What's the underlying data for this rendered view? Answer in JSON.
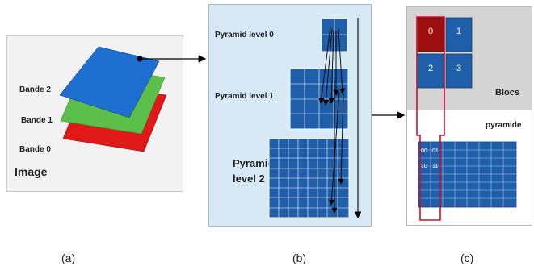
{
  "panel_a": {
    "bands": [
      "Bande 2",
      "Bande 1",
      "Bande 0"
    ],
    "image_label": "Image",
    "band_colors": [
      "#1e6fd0",
      "#5cbf4a",
      "#e01818"
    ]
  },
  "panel_b": {
    "levels": [
      "Pyramid level 0",
      "Pyramid level 1",
      "Pyramid",
      "level 2"
    ]
  },
  "panel_c": {
    "blocks": [
      "0",
      "1",
      "2",
      "3"
    ],
    "blocs_label": "Blocs",
    "pyramide_label": "pyramide",
    "sub_codes": [
      "00",
      "01",
      "10",
      "11"
    ]
  },
  "captions": [
    "(a)",
    "(b)",
    "(c)"
  ],
  "colors": {
    "tile_blue": "#1f5ea8",
    "highlight_red": "#c8102e"
  }
}
